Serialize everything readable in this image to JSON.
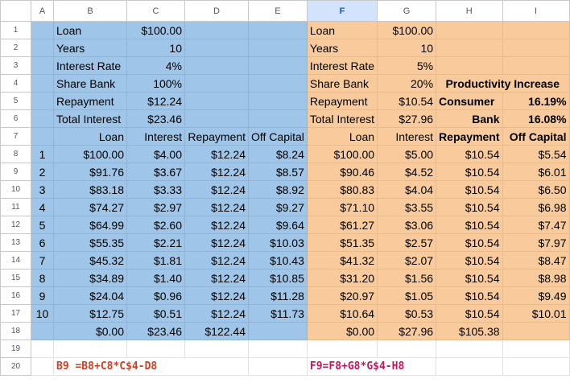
{
  "columns": [
    "A",
    "B",
    "C",
    "D",
    "E",
    "F",
    "G",
    "H",
    "I"
  ],
  "selected_column": "F",
  "colors": {
    "left_fill": "#9fc5e8",
    "right_fill": "#f9cb9c",
    "formula_left": "#cc4125",
    "formula_right": "#c2185b"
  },
  "left": {
    "params": [
      {
        "label": "Loan",
        "value": "$100.00"
      },
      {
        "label": "Years",
        "value": "10"
      },
      {
        "label": "Interest Rate",
        "value": "4%"
      },
      {
        "label": "Share Bank",
        "value": "100%"
      },
      {
        "label": "Repayment",
        "value": "$12.24"
      },
      {
        "label": "Total Interest",
        "value": "$23.46"
      }
    ],
    "headers": [
      "Loan",
      "Interest",
      "Repayment",
      "Off Capital"
    ],
    "rows": [
      [
        "1",
        "$100.00",
        "$4.00",
        "$12.24",
        "$8.24"
      ],
      [
        "2",
        "$91.76",
        "$3.67",
        "$12.24",
        "$8.57"
      ],
      [
        "3",
        "$83.18",
        "$3.33",
        "$12.24",
        "$8.92"
      ],
      [
        "4",
        "$74.27",
        "$2.97",
        "$12.24",
        "$9.27"
      ],
      [
        "5",
        "$64.99",
        "$2.60",
        "$12.24",
        "$9.64"
      ],
      [
        "6",
        "$55.35",
        "$2.21",
        "$12.24",
        "$10.03"
      ],
      [
        "7",
        "$45.32",
        "$1.81",
        "$12.24",
        "$10.43"
      ],
      [
        "8",
        "$34.89",
        "$1.40",
        "$12.24",
        "$10.85"
      ],
      [
        "9",
        "$24.04",
        "$0.96",
        "$12.24",
        "$11.28"
      ],
      [
        "10",
        "$12.75",
        "$0.51",
        "$12.24",
        "$11.73"
      ]
    ],
    "totals": [
      "$0.00",
      "$23.46",
      "$122.44"
    ],
    "formula": "B9  =B8+C8*C$4-D8"
  },
  "right": {
    "params": [
      {
        "label": "Loan",
        "value": "$100.00"
      },
      {
        "label": "Years",
        "value": "10"
      },
      {
        "label": "Interest Rate",
        "value": "5%"
      },
      {
        "label": "Share Bank",
        "value": "20%"
      },
      {
        "label": "Repayment",
        "value": "$10.54"
      },
      {
        "label": "Total Interest",
        "value": "$27.96"
      }
    ],
    "productivity": {
      "title": "Productivity Increase",
      "consumer_label": "Consumer",
      "consumer_value": "16.19%",
      "bank_label": "Bank",
      "bank_value": "16.08%"
    },
    "headers": [
      "Loan",
      "Interest",
      "Repayment",
      "Off Capital"
    ],
    "rows": [
      [
        "$100.00",
        "$5.00",
        "$10.54",
        "$5.54"
      ],
      [
        "$90.46",
        "$4.52",
        "$10.54",
        "$6.01"
      ],
      [
        "$80.83",
        "$4.04",
        "$10.54",
        "$6.50"
      ],
      [
        "$71.10",
        "$3.55",
        "$10.54",
        "$6.98"
      ],
      [
        "$61.27",
        "$3.06",
        "$10.54",
        "$7.47"
      ],
      [
        "$51.35",
        "$2.57",
        "$10.54",
        "$7.97"
      ],
      [
        "$41.32",
        "$2.07",
        "$10.54",
        "$8.47"
      ],
      [
        "$31.20",
        "$1.56",
        "$10.54",
        "$8.98"
      ],
      [
        "$20.97",
        "$1.05",
        "$10.54",
        "$9.49"
      ],
      [
        "$10.64",
        "$0.53",
        "$10.54",
        "$10.01"
      ]
    ],
    "totals": [
      "$0.00",
      "$27.96",
      "$105.38"
    ],
    "formula": "F9=F8+G8*G$4-H8"
  }
}
